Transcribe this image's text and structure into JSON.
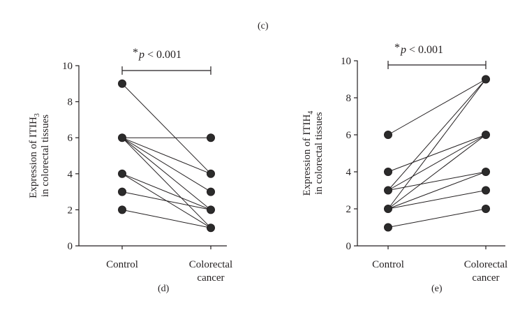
{
  "captions": {
    "top": "(c)",
    "left": "(d)",
    "right": "(e)"
  },
  "chart_data": [
    {
      "type": "line",
      "panel": "(d)",
      "ylabel_line1": "Expression of ITIH",
      "ylabel_sub": "3",
      "ylabel_line2": "in colorectal tissues",
      "categories": [
        "Control",
        "Colorectal cancer"
      ],
      "category_lines": [
        [
          "Control"
        ],
        [
          "Colorectal",
          "cancer"
        ]
      ],
      "ylim": [
        0,
        10
      ],
      "yticks": [
        0,
        2,
        4,
        6,
        8,
        10
      ],
      "significance": {
        "star": "*",
        "p": "p",
        "text": " < 0.001"
      },
      "pairs": [
        [
          9,
          4
        ],
        [
          6,
          6
        ],
        [
          6,
          4
        ],
        [
          6,
          3
        ],
        [
          6,
          2
        ],
        [
          6,
          1
        ],
        [
          4,
          2
        ],
        [
          4,
          1
        ],
        [
          3,
          2
        ],
        [
          2,
          1
        ]
      ]
    },
    {
      "type": "line",
      "panel": "(e)",
      "ylabel_line1": "Expression of ITIH",
      "ylabel_sub": "4",
      "ylabel_line2": "in colorectal tissues",
      "categories": [
        "Control",
        "Colorectal cancer"
      ],
      "category_lines": [
        [
          "Control"
        ],
        [
          "Colorectal",
          "cancer"
        ]
      ],
      "ylim": [
        0,
        10
      ],
      "yticks": [
        0,
        2,
        4,
        6,
        8,
        10
      ],
      "significance": {
        "star": "*",
        "p": "p",
        "text": " < 0.001"
      },
      "pairs": [
        [
          6,
          9
        ],
        [
          4,
          6
        ],
        [
          3,
          9
        ],
        [
          3,
          6
        ],
        [
          3,
          4
        ],
        [
          2,
          9
        ],
        [
          2,
          6
        ],
        [
          2,
          4
        ],
        [
          2,
          3
        ],
        [
          1,
          2
        ]
      ]
    }
  ]
}
